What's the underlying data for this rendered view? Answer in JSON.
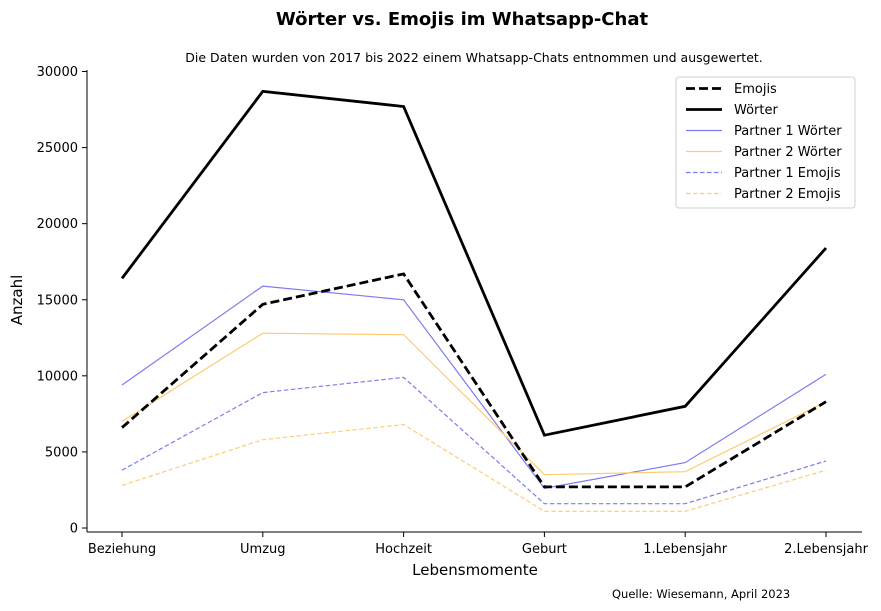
{
  "chart_data": {
    "type": "line",
    "title": "Wörter vs. Emojis im Whatsapp-Chat",
    "subtitle": "Die Daten wurden von 2017 bis 2022 einem Whatsapp-Chats entnommen und ausgewertet.",
    "xlabel": "Lebensmomente",
    "ylabel": "Anzahl",
    "categories": [
      "Beziehung",
      "Umzug",
      "Hochzeit",
      "Geburt",
      "1.Lebensjahr",
      "2.Lebensjahr"
    ],
    "ylim": [
      0,
      30000
    ],
    "yticks": [
      0,
      5000,
      10000,
      15000,
      20000,
      25000,
      30000
    ],
    "grid": false,
    "legend_position": "top-right",
    "source": "Quelle: Wiesemann, April 2023",
    "series": [
      {
        "name": "Emojis",
        "values": [
          6600,
          14700,
          16700,
          2700,
          2700,
          8300
        ],
        "color": "#000000",
        "style": "dashed",
        "weight": "thick"
      },
      {
        "name": "Wörter",
        "values": [
          16400,
          28700,
          27700,
          6100,
          8000,
          18400
        ],
        "color": "#000000",
        "style": "solid",
        "weight": "thick"
      },
      {
        "name": "Partner 1 Wörter",
        "values": [
          9400,
          15900,
          15000,
          2600,
          4300,
          10100
        ],
        "color": "#7b7bf0",
        "style": "solid",
        "weight": "thin"
      },
      {
        "name": "Partner 2 Wörter",
        "values": [
          7000,
          12800,
          12700,
          3500,
          3700,
          8300
        ],
        "color": "#ffcc70",
        "style": "solid",
        "weight": "thin"
      },
      {
        "name": "Partner 1 Emojis",
        "values": [
          3800,
          8900,
          9900,
          1600,
          1600,
          4400
        ],
        "color": "#7b7bf0",
        "style": "dashed",
        "weight": "thin"
      },
      {
        "name": "Partner 2 Emojis",
        "values": [
          2800,
          5800,
          6800,
          1100,
          1100,
          3800
        ],
        "color": "#ffcc70",
        "style": "dashed",
        "weight": "thin"
      }
    ]
  }
}
